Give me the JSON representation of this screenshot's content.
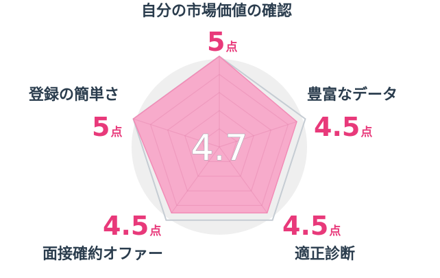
{
  "chart_data": {
    "type": "radar",
    "average": "4.7",
    "unit": "点",
    "max": 5,
    "axes": [
      {
        "label": "自分の市場価値の確認",
        "value": 5
      },
      {
        "label": "豊富なデータ",
        "value": 4.5
      },
      {
        "label": "適正診断",
        "value": 4.5
      },
      {
        "label": "面接確約オファー",
        "value": 4.5
      },
      {
        "label": "登録の簡単さ",
        "value": 5
      }
    ],
    "colors": {
      "fill": "#f7a6c8",
      "fill_stroke": "#f28bb6",
      "background_circle": "#efefef",
      "outline": "#c5ccd3",
      "center_text": "#ffffff",
      "label": "#2a3c4d",
      "score": "#e8397a"
    }
  }
}
